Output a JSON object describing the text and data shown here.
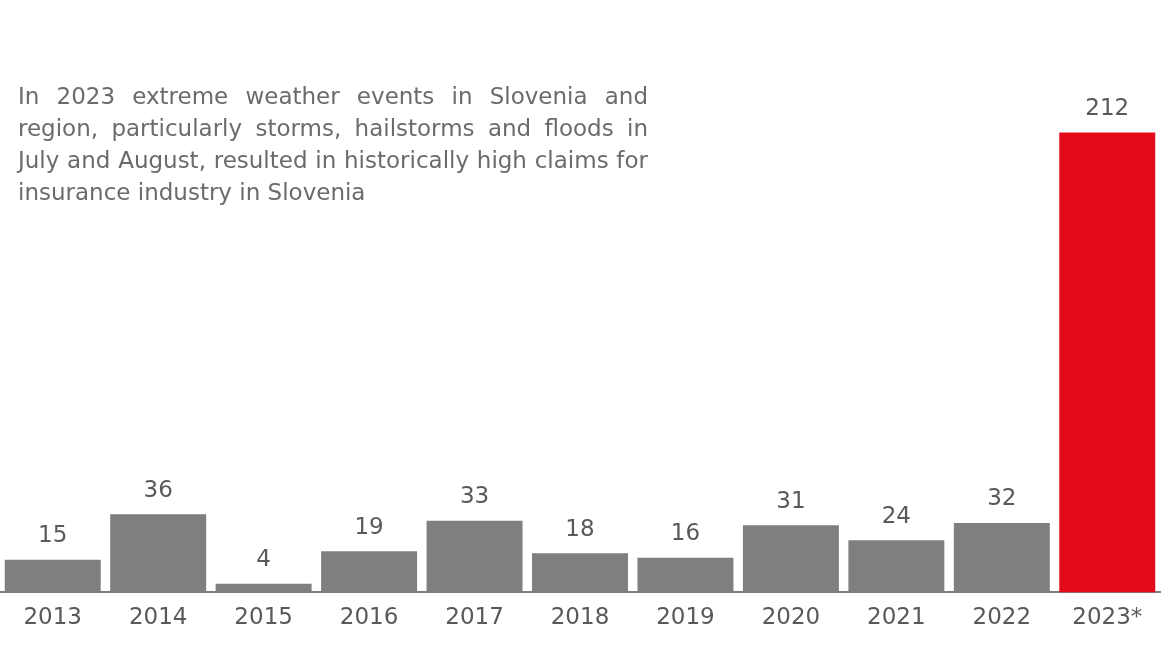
{
  "chart_data": {
    "type": "bar",
    "categories": [
      "2013",
      "2014",
      "2015",
      "2016",
      "2017",
      "2018",
      "2019",
      "2020",
      "2021",
      "2022",
      "2023*"
    ],
    "values": [
      15,
      36,
      4,
      19,
      33,
      18,
      16,
      31,
      24,
      32,
      212
    ],
    "colors": [
      "#7f7f7f",
      "#7f7f7f",
      "#7f7f7f",
      "#7f7f7f",
      "#7f7f7f",
      "#7f7f7f",
      "#7f7f7f",
      "#7f7f7f",
      "#7f7f7f",
      "#7f7f7f",
      "#e30b17"
    ],
    "data_labels": true,
    "grid": false,
    "legend": false,
    "annotations": [
      "In 2023 extreme weather events in Slovenia and region, particularly storms, hailstorms and floods in July and August, resulted in historically high claims for insurance industry in Slovenia"
    ]
  }
}
